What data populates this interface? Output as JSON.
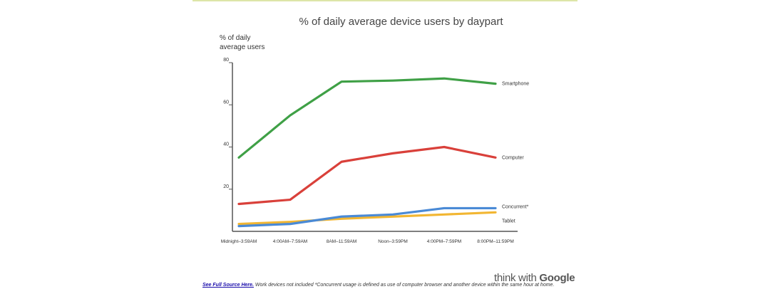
{
  "chart_data": {
    "type": "line",
    "title": "% of daily average device users by daypart",
    "ylabel_lines": [
      "% of daily",
      "average users"
    ],
    "categories": [
      "Midnight–3:59AM",
      "4:00AM–7:59AM",
      "8AM–11:59AM",
      "Noon–3:59PM",
      "4:00PM–7:59PM",
      "8:00PM–11:59PM"
    ],
    "yticks": [
      20,
      40,
      60,
      80
    ],
    "ylim": [
      0,
      80
    ],
    "grid": false,
    "series": [
      {
        "name": "Smartphone",
        "color": "#3fa046",
        "values": [
          35,
          55,
          71,
          71.5,
          72.5,
          70
        ]
      },
      {
        "name": "Computer",
        "color": "#d9403a",
        "values": [
          13,
          15,
          33,
          37,
          40,
          35
        ]
      },
      {
        "name": "Concurrent*",
        "color": "#4a8ad6",
        "values": [
          2.5,
          3.5,
          7,
          8,
          11,
          11
        ]
      },
      {
        "name": "Tablet",
        "color": "#f2b632",
        "values": [
          3.5,
          4.5,
          6,
          7,
          8,
          9
        ]
      }
    ]
  },
  "footer": {
    "link_text": "See Full Source Here.",
    "note": " Work devices not included *Concurrent usage is defined as use of computer browser and another device within the same hour at home."
  },
  "brand": {
    "part1": "think with ",
    "part2": "Google"
  },
  "colors": {
    "top_rule": "#dde5a8",
    "axis": "#555555"
  }
}
